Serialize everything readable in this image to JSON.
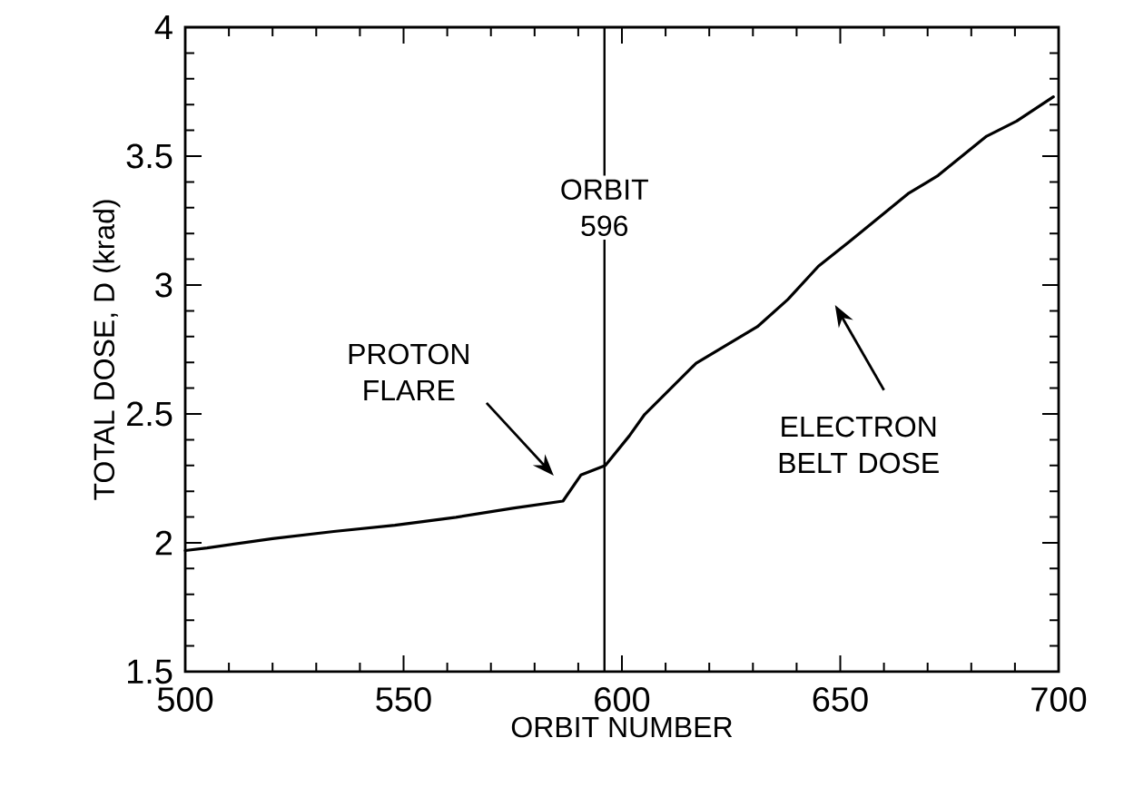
{
  "chart_data": {
    "type": "line",
    "xlabel": "ORBIT NUMBER",
    "ylabel": "TOTAL DOSE, D (krad)",
    "xlim": [
      500,
      700
    ],
    "ylim": [
      1.5,
      4
    ],
    "xticks": [
      500,
      550,
      600,
      650,
      700
    ],
    "yticks": [
      1.5,
      2,
      2.5,
      3,
      3.5,
      4
    ],
    "marker": "none",
    "line_style": "solid",
    "series": [
      {
        "color": "#000000",
        "x": [
          500,
          505,
          520,
          534,
          548,
          562,
          575,
          586.5,
          590.6,
          596.2,
          601.7,
          605.2,
          617,
          631,
          638,
          645,
          652,
          665.5,
          672.4,
          683.5,
          690.4,
          698.8
        ],
        "values": [
          1.97,
          1.98,
          2.016,
          2.044,
          2.068,
          2.099,
          2.134,
          2.162,
          2.263,
          2.3,
          2.415,
          2.498,
          2.697,
          2.838,
          2.944,
          3.073,
          3.167,
          3.354,
          3.425,
          3.577,
          3.636,
          3.73
        ]
      }
    ],
    "ref_lines": [
      {
        "axis": "x",
        "value": 596,
        "label": "ORBIT 596",
        "color": "#000000"
      }
    ],
    "annotations": [
      "PROTON FLARE",
      "ELECTRON BELT DOSE"
    ]
  }
}
